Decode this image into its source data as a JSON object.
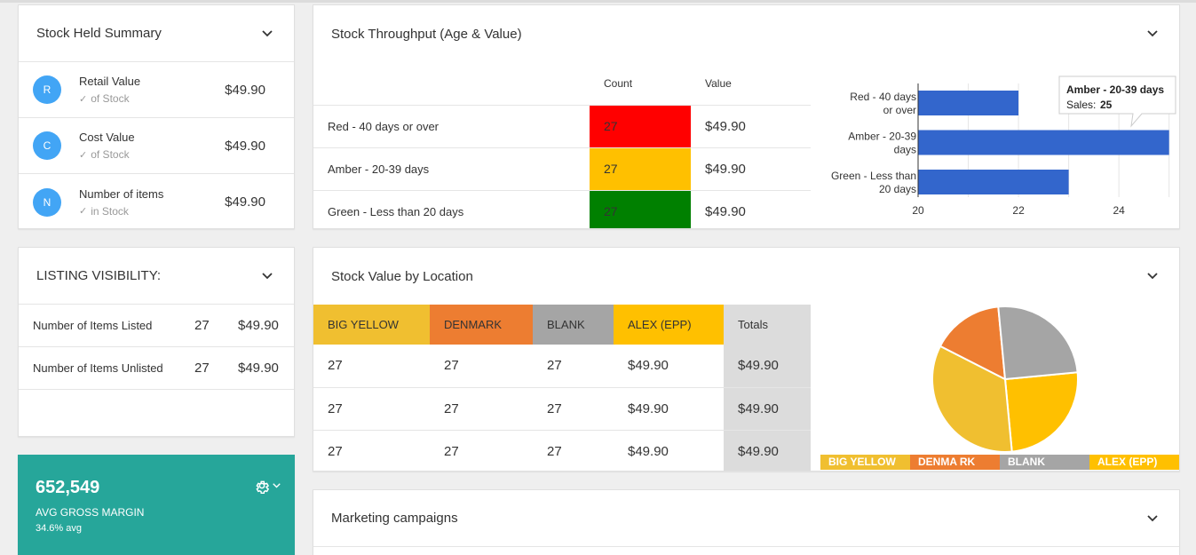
{
  "stock_held": {
    "title": "Stock Held Summary",
    "rows": [
      {
        "initial": "R",
        "label": "Retail Value",
        "sub": "of Stock",
        "value": "$49.90"
      },
      {
        "initial": "C",
        "label": "Cost Value",
        "sub": "of Stock",
        "value": "$49.90"
      },
      {
        "initial": "N",
        "label": "Number of items",
        "sub": "in Stock",
        "value": "$49.90"
      }
    ]
  },
  "listing": {
    "title": "LISTING VISIBILITY:",
    "rows": [
      {
        "label": "Number of Items Listed",
        "count": "27",
        "value": "$49.90"
      },
      {
        "label": "Number of Items Unlisted",
        "count": "27",
        "value": "$49.90"
      }
    ]
  },
  "margin": {
    "value": "652,549",
    "label": "AVG GROSS MARGIN",
    "avg": "34.6% avg"
  },
  "throughput": {
    "title": "Stock Throughput (Age & Value)",
    "col_count": "Count",
    "col_value": "Value",
    "rows": [
      {
        "label": "Red - 40 days or over",
        "count": "27",
        "value": "$49.90",
        "color": "#ff0000"
      },
      {
        "label": "Amber - 20-39 days",
        "count": "27",
        "value": "$49.90",
        "color": "#ffc000"
      },
      {
        "label": "Green - Less than 20 days",
        "count": "27",
        "value": "$49.90",
        "color": "#008000"
      }
    ],
    "tooltip": {
      "title": "Amber - 20-39 days",
      "key": "Sales:",
      "value": "25"
    }
  },
  "chart_data": [
    {
      "type": "bar",
      "orientation": "horizontal",
      "categories": [
        "Red - 40 days or over",
        "Amber - 20-39 days",
        "Green - Less than 20 days"
      ],
      "values": [
        22,
        25,
        23
      ],
      "xlim": [
        20,
        25.2
      ],
      "xticks": [
        "20",
        "22",
        "24"
      ],
      "color": "#3366cc"
    },
    {
      "type": "pie",
      "labels": [
        "BIG YELLOW",
        "DENMA RK",
        "BLANK",
        "ALEX (EPP)"
      ],
      "values": [
        34,
        16,
        25,
        25
      ],
      "colors": [
        "#f0bf30",
        "#ed7d31",
        "#a5a5a5",
        "#ffc000"
      ]
    }
  ],
  "location": {
    "title": "Stock Value by Location",
    "headers": [
      "BIG YELLOW",
      "DENMARK",
      "BLANK",
      "ALEX (EPP)",
      "Totals"
    ],
    "header_colors": [
      "#f0bf30",
      "#ed7d31",
      "#a5a5a5",
      "#ffc000",
      "#dcdcdc"
    ],
    "rows": [
      [
        "27",
        "27",
        "27",
        "$49.90",
        "$49.90"
      ],
      [
        "27",
        "27",
        "27",
        "$49.90",
        "$49.90"
      ],
      [
        "27",
        "27",
        "27",
        "$49.90",
        "$49.90"
      ]
    ]
  },
  "marketing": {
    "title": "Marketing campaigns"
  }
}
